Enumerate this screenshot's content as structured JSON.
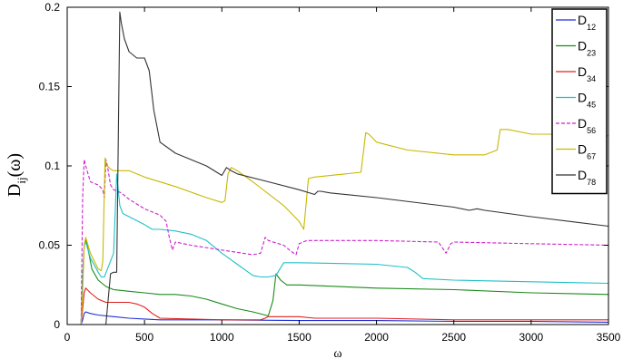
{
  "chart_data": {
    "type": "line",
    "title": "",
    "xlabel": "ω",
    "ylabel": "D",
    "ylabel_sub": "ij",
    "ylabel_suffix": "(ω)",
    "xlim": [
      0,
      3500
    ],
    "ylim": [
      0,
      0.2
    ],
    "xticks": [
      0,
      500,
      1000,
      1500,
      2000,
      2500,
      3000,
      3500
    ],
    "xtick_labels": [
      "0",
      "500",
      "1000",
      "1500",
      "2000",
      "2500",
      "3000",
      "3500"
    ],
    "yticks": [
      0,
      0.05,
      0.1,
      0.15,
      0.2
    ],
    "ytick_labels": [
      "0",
      "0.05",
      "0.1",
      "0.15",
      "0.2"
    ],
    "grid": false,
    "legend_position": "top-right",
    "series": [
      {
        "name": "D",
        "sub": "12",
        "color": "#1f2fd6",
        "dash": "solid",
        "x": [
          0,
          90,
          100,
          110,
          120,
          150,
          200,
          300,
          400,
          500,
          600,
          800,
          1000,
          1500,
          2000,
          2500,
          3000,
          3500
        ],
        "y": [
          0,
          0,
          0.003,
          0.007,
          0.008,
          0.007,
          0.006,
          0.005,
          0.004,
          0.0035,
          0.003,
          0.003,
          0.003,
          0.0025,
          0.0025,
          0.002,
          0.002,
          0.0015
        ]
      },
      {
        "name": "D",
        "sub": "23",
        "color": "#1a8a1a",
        "dash": "solid",
        "x": [
          0,
          90,
          100,
          110,
          120,
          140,
          160,
          200,
          250,
          300,
          400,
          500,
          600,
          700,
          800,
          900,
          1000,
          1100,
          1200,
          1300,
          1330,
          1350,
          1380,
          1420,
          1500,
          2000,
          2500,
          3000,
          3500
        ],
        "y": [
          0,
          0,
          0.03,
          0.05,
          0.054,
          0.045,
          0.035,
          0.028,
          0.024,
          0.022,
          0.021,
          0.02,
          0.019,
          0.019,
          0.018,
          0.016,
          0.013,
          0.01,
          0.008,
          0.0055,
          0.015,
          0.032,
          0.028,
          0.025,
          0.025,
          0.023,
          0.022,
          0.02,
          0.019
        ]
      },
      {
        "name": "D",
        "sub": "34",
        "color": "#e02020",
        "dash": "solid",
        "x": [
          0,
          90,
          100,
          110,
          120,
          150,
          200,
          250,
          300,
          350,
          400,
          450,
          500,
          550,
          600,
          1000,
          1250,
          1280,
          1300,
          1500,
          1600,
          2000,
          2500,
          3000,
          3500
        ],
        "y": [
          0,
          0,
          0.01,
          0.02,
          0.023,
          0.02,
          0.016,
          0.014,
          0.014,
          0.014,
          0.014,
          0.013,
          0.011,
          0.007,
          0.004,
          0.003,
          0.003,
          0.004,
          0.005,
          0.005,
          0.004,
          0.004,
          0.003,
          0.003,
          0.003
        ]
      },
      {
        "name": "D",
        "sub": "45",
        "color": "#20c0c8",
        "dash": "solid",
        "x": [
          0,
          90,
          100,
          110,
          120,
          150,
          200,
          220,
          240,
          260,
          300,
          320,
          340,
          360,
          400,
          500,
          550,
          600,
          700,
          800,
          900,
          1000,
          1100,
          1200,
          1250,
          1300,
          1350,
          1400,
          1500,
          2000,
          2200,
          2250,
          2300,
          2500,
          3000,
          3500
        ],
        "y": [
          0,
          0,
          0.03,
          0.05,
          0.052,
          0.042,
          0.033,
          0.03,
          0.03,
          0.035,
          0.045,
          0.095,
          0.075,
          0.07,
          0.068,
          0.063,
          0.06,
          0.06,
          0.059,
          0.057,
          0.053,
          0.045,
          0.038,
          0.031,
          0.03,
          0.03,
          0.031,
          0.039,
          0.039,
          0.038,
          0.036,
          0.033,
          0.029,
          0.028,
          0.027,
          0.026
        ]
      },
      {
        "name": "D",
        "sub": "56",
        "color": "#cc22cc",
        "dash": "dashed",
        "x": [
          0,
          90,
          100,
          110,
          120,
          150,
          200,
          230,
          240,
          250,
          260,
          280,
          300,
          350,
          400,
          500,
          600,
          640,
          660,
          680,
          700,
          800,
          1000,
          1200,
          1250,
          1280,
          1300,
          1400,
          1450,
          1480,
          1500,
          1550,
          2000,
          2400,
          2450,
          2480,
          2500,
          3000,
          3500
        ],
        "y": [
          0,
          0,
          0.08,
          0.104,
          0.1,
          0.09,
          0.088,
          0.085,
          0.08,
          0.104,
          0.1,
          0.088,
          0.085,
          0.083,
          0.079,
          0.073,
          0.069,
          0.065,
          0.055,
          0.047,
          0.052,
          0.05,
          0.047,
          0.044,
          0.045,
          0.055,
          0.053,
          0.05,
          0.046,
          0.044,
          0.051,
          0.053,
          0.053,
          0.052,
          0.045,
          0.051,
          0.052,
          0.051,
          0.05
        ]
      },
      {
        "name": "D",
        "sub": "67",
        "color": "#c8b800",
        "dash": "solid",
        "x": [
          0,
          90,
          100,
          110,
          120,
          150,
          200,
          220,
          230,
          245,
          255,
          260,
          280,
          300,
          400,
          500,
          700,
          900,
          1000,
          1020,
          1040,
          1060,
          1100,
          1200,
          1400,
          1500,
          1530,
          1560,
          1600,
          1800,
          1900,
          1930,
          1950,
          2000,
          2200,
          2500,
          2700,
          2780,
          2800,
          2850,
          3000,
          3200,
          3500
        ],
        "y": [
          0,
          0,
          0.02,
          0.05,
          0.055,
          0.045,
          0.035,
          0.034,
          0.04,
          0.105,
          0.1,
          0.1,
          0.098,
          0.097,
          0.097,
          0.093,
          0.087,
          0.08,
          0.077,
          0.078,
          0.095,
          0.099,
          0.097,
          0.09,
          0.075,
          0.065,
          0.06,
          0.092,
          0.093,
          0.095,
          0.096,
          0.121,
          0.12,
          0.115,
          0.11,
          0.107,
          0.107,
          0.11,
          0.123,
          0.123,
          0.12,
          0.12,
          0.119
        ]
      },
      {
        "name": "D",
        "sub": "78",
        "color": "#333333",
        "dash": "solid",
        "x": [
          0,
          200,
          250,
          280,
          300,
          320,
          340,
          350,
          370,
          400,
          450,
          500,
          530,
          560,
          600,
          700,
          800,
          900,
          1000,
          1030,
          1060,
          1100,
          1300,
          1500,
          1600,
          1620,
          1640,
          1700,
          2000,
          2500,
          2600,
          2650,
          2700,
          3000,
          3500
        ],
        "y": [
          0,
          0,
          0.0,
          0.032,
          0.033,
          0.033,
          0.197,
          0.19,
          0.18,
          0.172,
          0.168,
          0.168,
          0.16,
          0.135,
          0.115,
          0.108,
          0.104,
          0.1,
          0.094,
          0.099,
          0.097,
          0.095,
          0.09,
          0.085,
          0.082,
          0.084,
          0.084,
          0.083,
          0.08,
          0.074,
          0.072,
          0.073,
          0.072,
          0.068,
          0.062
        ]
      }
    ]
  }
}
